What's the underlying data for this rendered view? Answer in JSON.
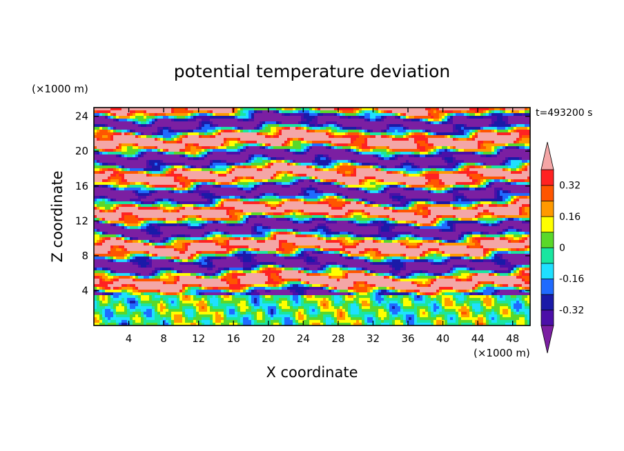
{
  "chart_data": {
    "type": "heatmap",
    "title": "potential temperature deviation",
    "xlabel": "X coordinate",
    "ylabel": "Z coordinate",
    "x_unit": "(×1000 m)",
    "y_unit": "(×1000 m)",
    "time_label": "t=493200 s",
    "xlim": [
      0,
      50
    ],
    "ylim": [
      0,
      25
    ],
    "x_ticks": [
      4,
      8,
      12,
      16,
      20,
      24,
      28,
      32,
      36,
      40,
      44,
      48
    ],
    "y_ticks": [
      4,
      8,
      12,
      16,
      20,
      24
    ],
    "colorbar": {
      "levels": [
        -0.4,
        -0.32,
        -0.24,
        -0.16,
        -0.08,
        0,
        0.08,
        0.16,
        0.24,
        0.32,
        0.4
      ],
      "labels": [
        "0.32",
        "0.16",
        "0",
        "-0.16",
        "-0.32"
      ],
      "label_values": [
        0.32,
        0.16,
        0,
        -0.16,
        -0.32
      ],
      "colors": [
        "#7b1fa2",
        "#4b0fa8",
        "#1a1aa8",
        "#1f6bff",
        "#1fe0ff",
        "#19e6a0",
        "#5ad82a",
        "#ffff00",
        "#ff9900",
        "#ff5500",
        "#ff2222",
        "#f4a6a6"
      ],
      "extends": "both"
    },
    "field_note": "upper region (z 3.5-25): alternating warm/cold layered filaments; lower region (z 0-3.5): mixed boundary layer near zero"
  }
}
